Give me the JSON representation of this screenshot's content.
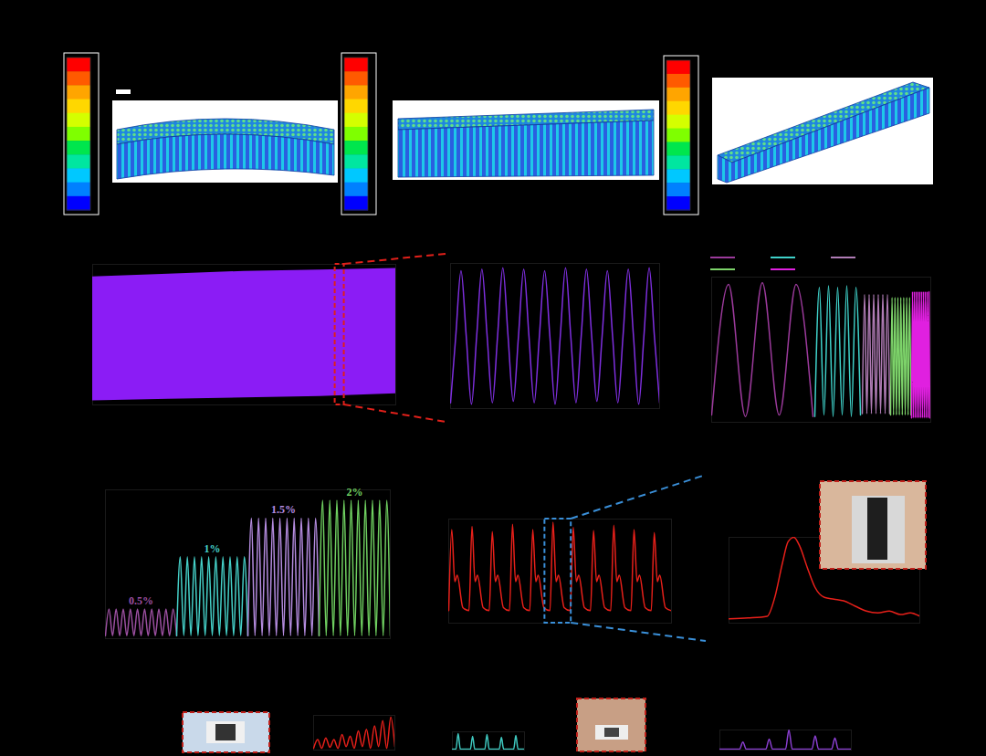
{
  "chart_data": [
    {
      "type": "band",
      "x": [
        0,
        25,
        50,
        75,
        100
      ],
      "upper": [
        0.91,
        0.93,
        0.95,
        0.96,
        0.97
      ],
      "lower": [
        0.03,
        0.04,
        0.05,
        0.06,
        0.08
      ],
      "color": "#8b1cf5",
      "xlim": [
        0,
        100
      ],
      "ylim": [
        0,
        1
      ],
      "highlight": [
        80,
        83
      ],
      "tick_labels": false
    },
    {
      "type": "line",
      "xlim": [
        0,
        10
      ],
      "ylim": [
        0,
        1
      ],
      "tick_labels": false,
      "series": [
        {
          "color": "#7f2fe0",
          "x": [
            0,
            0.25,
            0.5,
            0.75,
            1,
            1.25,
            1.5,
            1.75,
            2,
            2.25,
            2.5,
            2.75,
            3,
            3.25,
            3.5,
            3.75,
            4,
            4.25,
            4.5,
            4.75,
            5,
            5.25,
            5.5,
            5.75,
            6,
            6.25,
            6.5,
            6.75,
            7,
            7.25,
            7.5,
            7.75,
            8,
            8.25,
            8.5,
            8.75,
            9,
            9.25,
            9.5,
            9.75,
            10
          ],
          "values": [
            0.04,
            0.5,
            0.95,
            0.5,
            0.03,
            0.5,
            0.96,
            0.5,
            0.04,
            0.5,
            0.97,
            0.5,
            0.05,
            0.5,
            0.96,
            0.5,
            0.04,
            0.5,
            0.95,
            0.5,
            0.03,
            0.5,
            0.97,
            0.5,
            0.04,
            0.5,
            0.96,
            0.5,
            0.05,
            0.5,
            0.95,
            0.5,
            0.04,
            0.5,
            0.96,
            0.5,
            0.03,
            0.5,
            0.97,
            0.5,
            0.04
          ]
        }
      ]
    },
    {
      "type": "line",
      "xlim": [
        0,
        24
      ],
      "ylim": [
        0,
        1
      ],
      "tick_labels": false,
      "legend": "top",
      "series": [
        {
          "color": "#9b3a9b",
          "x": [
            0,
            1.85,
            3.7,
            5.55,
            7.4,
            9.25,
            11.1
          ],
          "values": [
            0.05,
            0.95,
            0.04,
            0.96,
            0.05,
            0.95,
            0.04
          ]
        },
        {
          "color": "#3fd1c9",
          "x": [
            11.3,
            11.8,
            12.3,
            12.8,
            13.3,
            13.8,
            14.3,
            14.8,
            15.3,
            15.8,
            16.3
          ],
          "values": [
            0.04,
            0.93,
            0.05,
            0.94,
            0.04,
            0.93,
            0.05,
            0.94,
            0.04,
            0.93,
            0.05
          ]
        },
        {
          "color": "#b07cb5",
          "x": [
            16.5,
            16.75,
            17,
            17.25,
            17.5,
            17.75,
            18,
            18.25,
            18.5,
            18.75,
            19,
            19.25,
            19.5
          ],
          "values": [
            0.06,
            0.88,
            0.06,
            0.88,
            0.06,
            0.88,
            0.06,
            0.88,
            0.06,
            0.88,
            0.06,
            0.88,
            0.06
          ]
        },
        {
          "color": "#7dd36a",
          "x": [
            19.6,
            19.76,
            19.92,
            20.08,
            20.24,
            20.4,
            20.56,
            20.72,
            20.88,
            21.04,
            21.2,
            21.36,
            21.52,
            21.68,
            21.84
          ],
          "values": [
            0.05,
            0.86,
            0.05,
            0.86,
            0.05,
            0.86,
            0.05,
            0.86,
            0.05,
            0.86,
            0.05,
            0.86,
            0.05,
            0.86,
            0.05
          ]
        },
        {
          "color": "#e020e0",
          "x": [
            21.9,
            22,
            22.1,
            22.2,
            22.3,
            22.4,
            22.5,
            22.6,
            22.7,
            22.8,
            22.9,
            23,
            23.1,
            23.2,
            23.3,
            23.4,
            23.5,
            23.6,
            23.7,
            23.8,
            23.9
          ],
          "values": [
            0.03,
            0.9,
            0.03,
            0.9,
            0.03,
            0.9,
            0.03,
            0.9,
            0.03,
            0.9,
            0.03,
            0.9,
            0.03,
            0.9,
            0.03,
            0.9,
            0.03,
            0.9,
            0.03,
            0.9,
            0.03
          ]
        }
      ]
    },
    {
      "type": "line",
      "xlim": [
        0,
        40
      ],
      "ylim": [
        0,
        1
      ],
      "tick_labels": false,
      "legend": "inline",
      "series": [
        {
          "name": "0.5%",
          "color": "#9b4fa0",
          "x": [
            0,
            0.5,
            1,
            1.5,
            2,
            2.5,
            3,
            3.5,
            4,
            4.5,
            5,
            5.5,
            6,
            6.5,
            7,
            7.5,
            8,
            8.5,
            9,
            9.5,
            10
          ],
          "values": [
            0.02,
            0.2,
            0.02,
            0.2,
            0.02,
            0.2,
            0.02,
            0.2,
            0.02,
            0.2,
            0.02,
            0.2,
            0.02,
            0.2,
            0.02,
            0.2,
            0.02,
            0.2,
            0.02,
            0.2,
            0.02
          ]
        },
        {
          "name": "1%",
          "color": "#45d0c8",
          "x": [
            10,
            10.5,
            11,
            11.5,
            12,
            12.5,
            13,
            13.5,
            14,
            14.5,
            15,
            15.5,
            16,
            16.5,
            17,
            17.5,
            18,
            18.5,
            19,
            19.5,
            20
          ],
          "values": [
            0.02,
            0.55,
            0.02,
            0.55,
            0.02,
            0.55,
            0.02,
            0.55,
            0.02,
            0.55,
            0.02,
            0.55,
            0.02,
            0.55,
            0.02,
            0.55,
            0.02,
            0.55,
            0.02,
            0.55,
            0.02
          ]
        },
        {
          "name": "1.5%",
          "color": "#b58ce0",
          "x": [
            20,
            20.5,
            21,
            21.5,
            22,
            22.5,
            23,
            23.5,
            24,
            24.5,
            25,
            25.5,
            26,
            26.5,
            27,
            27.5,
            28,
            28.5,
            29,
            29.5,
            30
          ],
          "values": [
            0.02,
            0.81,
            0.02,
            0.81,
            0.02,
            0.81,
            0.02,
            0.81,
            0.02,
            0.81,
            0.02,
            0.81,
            0.02,
            0.81,
            0.02,
            0.81,
            0.02,
            0.81,
            0.02,
            0.81,
            0.02
          ]
        },
        {
          "name": "2%",
          "color": "#6fcf60",
          "x": [
            30,
            30.5,
            31,
            31.5,
            32,
            32.5,
            33,
            33.5,
            34,
            34.5,
            35,
            35.5,
            36,
            36.5,
            37,
            37.5,
            38,
            38.5,
            39,
            39.5,
            40
          ],
          "values": [
            0.02,
            0.93,
            0.02,
            0.93,
            0.02,
            0.93,
            0.02,
            0.93,
            0.02,
            0.93,
            0.02,
            0.93,
            0.02,
            0.93,
            0.02,
            0.93,
            0.02,
            0.93,
            0.02,
            0.93,
            0.02
          ]
        }
      ]
    },
    {
      "type": "line",
      "xlim": [
        0,
        11
      ],
      "ylim": [
        0,
        1
      ],
      "tick_labels": false,
      "highlight": [
        4.75,
        6.05
      ],
      "series": [
        {
          "color": "#e8201a",
          "x": [
            0,
            0.15,
            0.3,
            0.42,
            0.7,
            1,
            1.15,
            1.3,
            1.42,
            1.7,
            2,
            2.15,
            2.3,
            2.42,
            2.7,
            3,
            3.15,
            3.3,
            3.42,
            3.7,
            4,
            4.15,
            4.3,
            4.42,
            4.7,
            5,
            5.15,
            5.3,
            5.42,
            5.7,
            6,
            6.15,
            6.3,
            6.42,
            6.7,
            7,
            7.15,
            7.3,
            7.42,
            7.7,
            8,
            8.15,
            8.3,
            8.42,
            8.7,
            9,
            9.15,
            9.3,
            9.42,
            9.7,
            10,
            10.15,
            10.3,
            10.42,
            10.7,
            11
          ],
          "values": [
            0.12,
            0.9,
            0.4,
            0.46,
            0.15,
            0.12,
            0.93,
            0.4,
            0.46,
            0.15,
            0.12,
            0.88,
            0.4,
            0.46,
            0.15,
            0.12,
            0.95,
            0.4,
            0.46,
            0.15,
            0.12,
            0.9,
            0.4,
            0.46,
            0.15,
            0.12,
            0.97,
            0.4,
            0.46,
            0.15,
            0.12,
            0.92,
            0.4,
            0.46,
            0.15,
            0.12,
            0.89,
            0.4,
            0.46,
            0.15,
            0.12,
            0.94,
            0.4,
            0.46,
            0.15,
            0.12,
            0.9,
            0.4,
            0.46,
            0.15,
            0.12,
            0.87,
            0.4,
            0.46,
            0.15,
            0.12
          ]
        }
      ]
    },
    {
      "type": "line",
      "xlim": [
        0,
        1
      ],
      "ylim": [
        0,
        1
      ],
      "tick_labels": false,
      "series": [
        {
          "color": "#e8201a",
          "x": [
            0,
            0.1,
            0.2,
            0.24,
            0.28,
            0.31,
            0.34,
            0.37,
            0.41,
            0.45,
            0.5,
            0.55,
            0.6,
            0.66,
            0.72,
            0.78,
            0.84,
            0.9,
            0.95,
            1
          ],
          "values": [
            0.05,
            0.06,
            0.08,
            0.3,
            0.7,
            0.95,
            1,
            0.9,
            0.65,
            0.42,
            0.3,
            0.28,
            0.26,
            0.2,
            0.14,
            0.12,
            0.14,
            0.1,
            0.12,
            0.08
          ]
        }
      ]
    },
    {
      "type": "line",
      "xlim": [
        0,
        20
      ],
      "ylim": [
        0,
        1
      ],
      "tick_labels": false,
      "series": [
        {
          "color": "#e8201a",
          "x": [
            0,
            1,
            2,
            3,
            4,
            5,
            6,
            7,
            8,
            9,
            10,
            11,
            12,
            13,
            14,
            15,
            16,
            17,
            18,
            19,
            20
          ],
          "values": [
            0.05,
            0.3,
            0.05,
            0.35,
            0.08,
            0.3,
            0.05,
            0.45,
            0.1,
            0.4,
            0.05,
            0.55,
            0.1,
            0.6,
            0.05,
            0.7,
            0.1,
            0.85,
            0.05,
            0.95,
            0.1
          ]
        }
      ]
    },
    {
      "type": "line",
      "xlim": [
        0,
        20
      ],
      "ylim": [
        0,
        1
      ],
      "tick_labels": false,
      "series": [
        {
          "color": "#3fc9c0",
          "x": [
            0,
            1,
            1.6,
            2.2,
            5,
            5.6,
            6.2,
            9,
            9.6,
            10.2,
            13,
            13.6,
            14.2,
            17,
            17.6,
            18.2,
            20
          ],
          "values": [
            0.05,
            0.05,
            0.9,
            0.05,
            0.05,
            0.75,
            0.05,
            0.05,
            0.85,
            0.05,
            0.05,
            0.7,
            0.05,
            0.05,
            0.8,
            0.05,
            0.05
          ]
        }
      ]
    },
    {
      "type": "line",
      "xlim": [
        0,
        20
      ],
      "ylim": [
        0,
        1
      ],
      "tick_labels": false,
      "series": [
        {
          "color": "#8a3fd0",
          "x": [
            0,
            3,
            3.5,
            4,
            7,
            7.5,
            8,
            10,
            10.5,
            11,
            14,
            14.5,
            15,
            17,
            17.5,
            18,
            20
          ],
          "values": [
            0.05,
            0.05,
            0.4,
            0.05,
            0.05,
            0.55,
            0.05,
            0.05,
            1,
            0.05,
            0.05,
            0.7,
            0.05,
            0.05,
            0.6,
            0.05,
            0.05
          ]
        }
      ]
    }
  ]
}
